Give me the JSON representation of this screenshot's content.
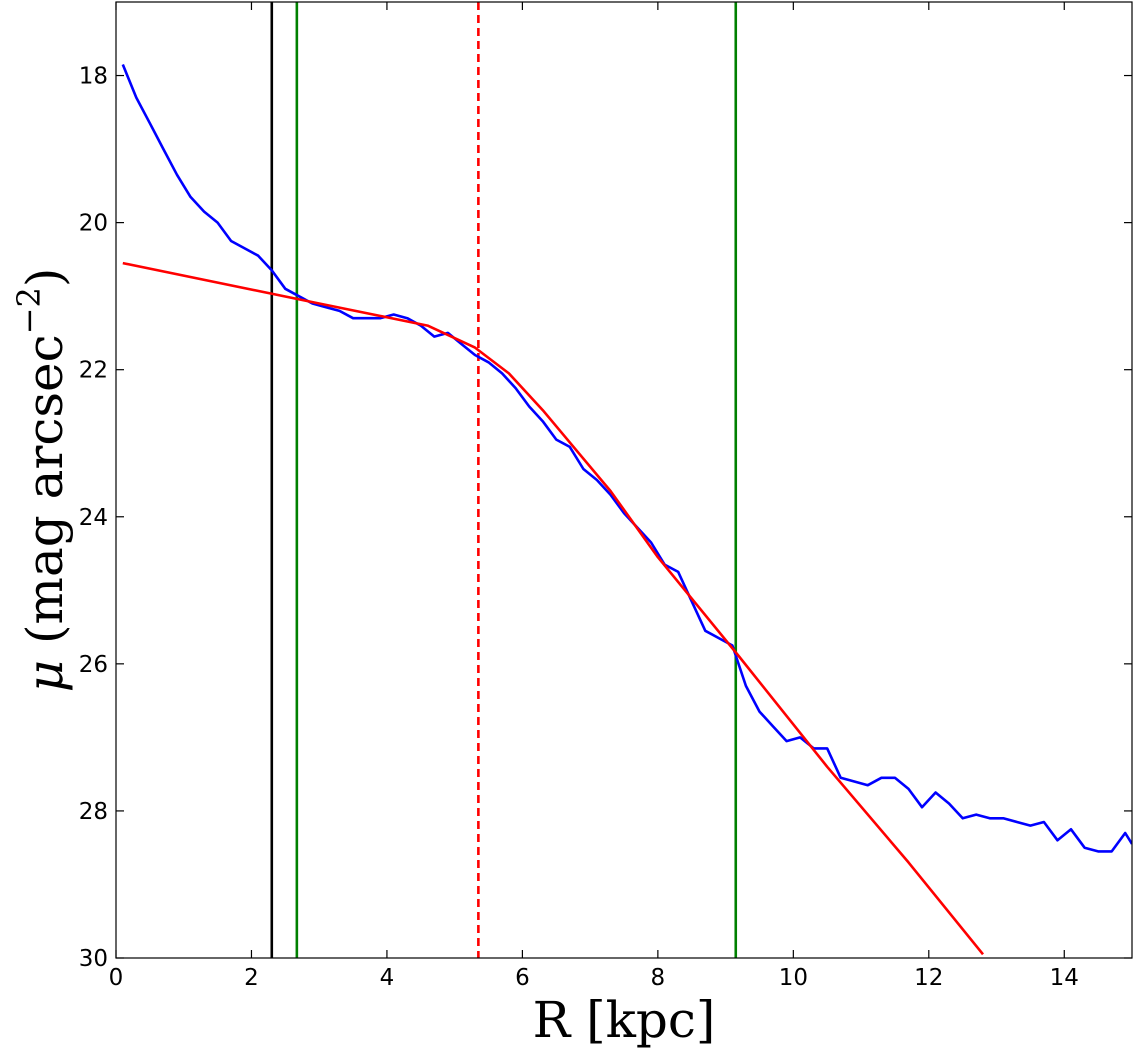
{
  "chart_data": {
    "type": "line",
    "xlabel": "R [kpc]",
    "ylabel": "μ (mag arcsec⁻²)",
    "ylabel_parts": {
      "symbol": "μ",
      "text": " (mag arcsec",
      "sup": "−2",
      "close": ")"
    },
    "xlim": [
      0,
      15
    ],
    "ylim": [
      30,
      17
    ],
    "y_inverted": true,
    "grid": false,
    "x_ticks": [
      0,
      2,
      4,
      6,
      8,
      10,
      12,
      14
    ],
    "y_ticks": [
      18,
      20,
      22,
      24,
      26,
      28,
      30
    ],
    "series": [
      {
        "kind": "profile",
        "color": "#0000ff",
        "x": [
          0.1,
          0.3,
          0.5,
          0.7,
          0.9,
          1.1,
          1.3,
          1.5,
          1.7,
          1.9,
          2.1,
          2.3,
          2.5,
          2.7,
          2.9,
          3.1,
          3.3,
          3.5,
          3.7,
          3.9,
          4.1,
          4.3,
          4.5,
          4.7,
          4.9,
          5.1,
          5.3,
          5.5,
          5.7,
          5.9,
          6.1,
          6.3,
          6.5,
          6.7,
          6.9,
          7.1,
          7.3,
          7.5,
          7.7,
          7.9,
          8.1,
          8.3,
          8.5,
          8.7,
          8.9,
          9.1,
          9.3,
          9.5,
          9.7,
          9.9,
          10.1,
          10.3,
          10.5,
          10.7,
          10.9,
          11.1,
          11.3,
          11.5,
          11.7,
          11.9,
          12.1,
          12.3,
          12.5,
          12.7,
          12.9,
          13.1,
          13.3,
          13.5,
          13.7,
          13.9,
          14.1,
          14.3,
          14.5,
          14.7,
          14.9,
          15.0
        ],
        "y": [
          17.85,
          18.3,
          18.65,
          19.0,
          19.35,
          19.65,
          19.85,
          20.0,
          20.25,
          20.35,
          20.45,
          20.65,
          20.9,
          21.0,
          21.1,
          21.15,
          21.2,
          21.3,
          21.3,
          21.3,
          21.25,
          21.3,
          21.4,
          21.55,
          21.5,
          21.65,
          21.8,
          21.9,
          22.05,
          22.25,
          22.5,
          22.7,
          22.95,
          23.05,
          23.35,
          23.5,
          23.7,
          23.95,
          24.15,
          24.35,
          24.65,
          24.75,
          25.15,
          25.55,
          25.65,
          25.75,
          26.3,
          26.65,
          26.85,
          27.05,
          27.0,
          27.15,
          27.15,
          27.55,
          27.6,
          27.65,
          27.55,
          27.55,
          27.7,
          27.95,
          27.75,
          27.9,
          28.1,
          28.05,
          28.1,
          28.1,
          28.15,
          28.2,
          28.15,
          28.4,
          28.25,
          28.5,
          28.55,
          28.55,
          28.3,
          28.45
        ]
      },
      {
        "kind": "fit",
        "color": "#ff0000",
        "x": [
          0.1,
          3.0,
          4.6,
          5.3,
          5.8,
          6.3,
          6.8,
          7.3,
          8.0,
          9.2,
          10.5,
          11.7,
          12.8
        ],
        "y": [
          20.55,
          21.1,
          21.4,
          21.7,
          22.05,
          22.55,
          23.1,
          23.65,
          24.55,
          25.9,
          27.4,
          28.7,
          29.95
        ]
      }
    ],
    "vertical_lines": [
      {
        "x": 2.3,
        "color": "#000000",
        "style": "solid"
      },
      {
        "x": 2.67,
        "color": "#008000",
        "style": "solid"
      },
      {
        "x": 5.35,
        "color": "#ff0000",
        "style": "dashed"
      },
      {
        "x": 9.15,
        "color": "#008000",
        "style": "solid"
      }
    ]
  }
}
